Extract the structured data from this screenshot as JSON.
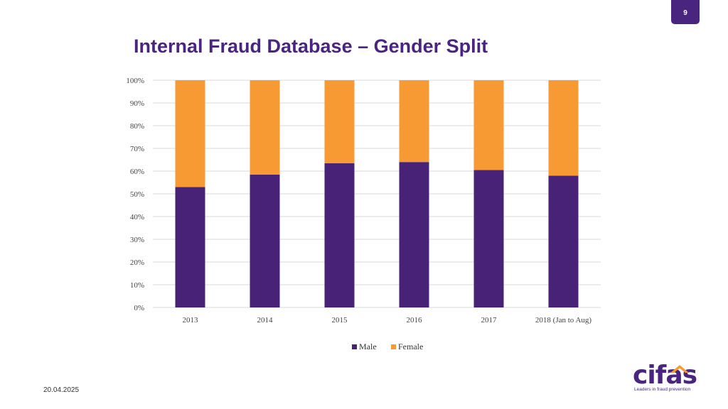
{
  "slide": {
    "page_number": "9",
    "date": "20.04.2025"
  },
  "title": "Internal Fraud Database – Gender Split",
  "logo": {
    "word": "cifas",
    "tagline": "Leaders in fraud prevention"
  },
  "colors": {
    "male": "#472277",
    "female": "#f79a34",
    "accent": "#4a2580",
    "grid": "#d9d9d9"
  },
  "chart_data": {
    "type": "bar",
    "stacked": true,
    "categories": [
      "2013",
      "2014",
      "2015",
      "2016",
      "2017",
      "2018 (Jan to Aug)"
    ],
    "series": [
      {
        "name": "Male",
        "values": [
          53,
          58.5,
          63.5,
          64,
          60.5,
          58
        ]
      },
      {
        "name": "Female",
        "values": [
          47,
          41.5,
          36.5,
          36,
          39.5,
          42
        ]
      }
    ],
    "ylim": [
      0,
      100
    ],
    "yticks": [
      "0%",
      "10%",
      "20%",
      "30%",
      "40%",
      "50%",
      "60%",
      "70%",
      "80%",
      "90%",
      "100%"
    ],
    "legend_position": "bottom",
    "grid": true
  }
}
